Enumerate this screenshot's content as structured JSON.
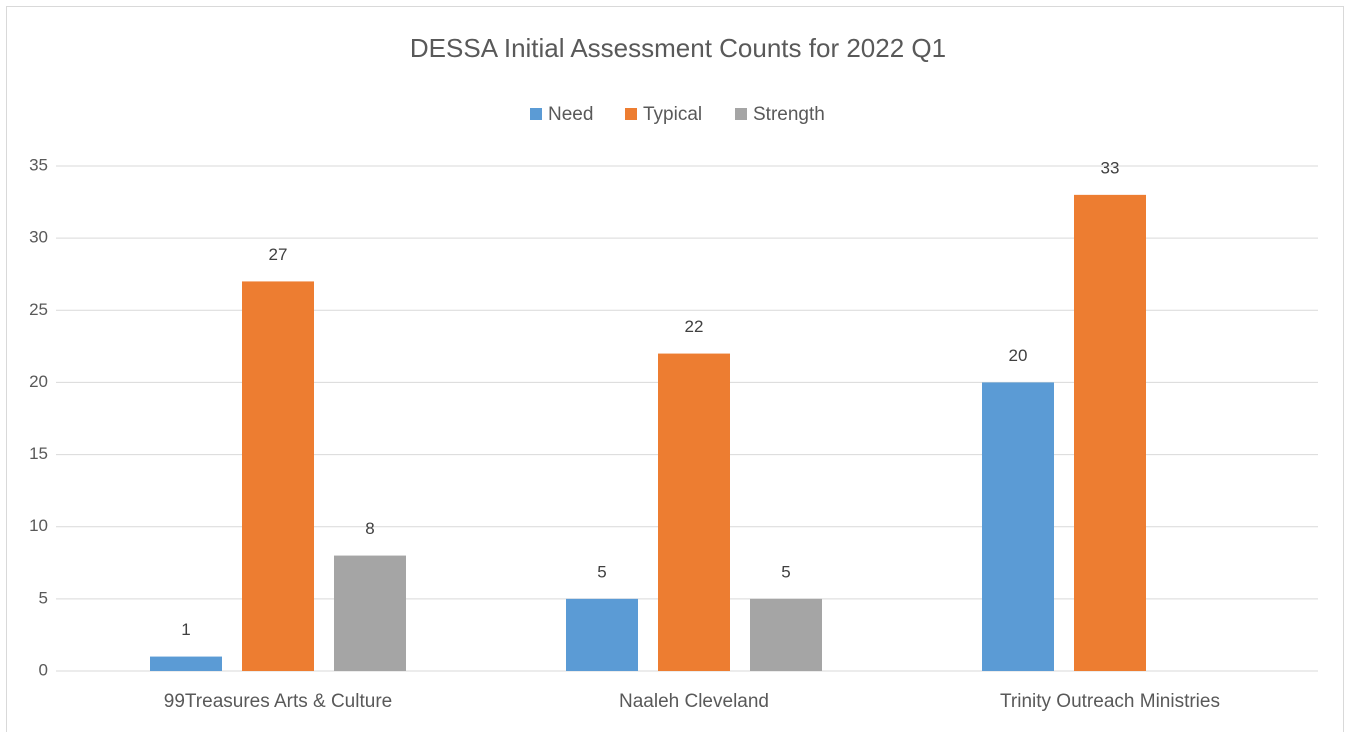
{
  "chart_data": {
    "type": "bar",
    "title": "DESSA Initial Assessment Counts for 2022 Q1",
    "categories": [
      "99Treasures Arts & Culture",
      "Naaleh Cleveland",
      "Trinity Outreach Ministries"
    ],
    "series": [
      {
        "name": "Need",
        "color": "#5b9bd5",
        "values": [
          1,
          5,
          20
        ]
      },
      {
        "name": "Typical",
        "color": "#ed7d31",
        "values": [
          27,
          22,
          33
        ]
      },
      {
        "name": "Strength",
        "color": "#a5a5a5",
        "values": [
          8,
          5,
          null
        ]
      }
    ],
    "ylim": [
      0,
      35
    ],
    "yticks": [
      0,
      5,
      10,
      15,
      20,
      25,
      30,
      35
    ],
    "grid": true,
    "legend": "top"
  }
}
